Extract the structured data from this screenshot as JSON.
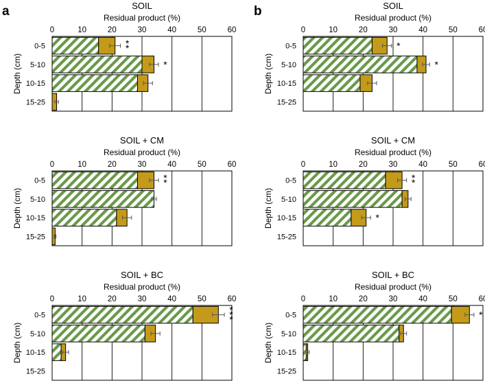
{
  "panel_labels": [
    "a",
    "b"
  ],
  "colors": {
    "hatch": "#6a994a",
    "solid": "#c49a1a",
    "frame": "#000000",
    "grid": "#000000"
  },
  "chart_data": [
    {
      "type": "bar",
      "orientation": "horizontal",
      "stacked": true,
      "panel": "a",
      "title": "SOIL",
      "xlabel": "Residual product (%)",
      "ylabel": "Depth (cm)",
      "xlim": [
        0,
        60
      ],
      "xticks": [
        0,
        10,
        20,
        30,
        40,
        50,
        60
      ],
      "categories": [
        "0-5",
        "5-10",
        "10-15",
        "15-25"
      ],
      "series": [
        {
          "style": "hatched",
          "values": [
            15.5,
            30,
            28.5,
            0
          ]
        },
        {
          "style": "solid",
          "values": [
            5.5,
            4,
            3.5,
            1.5
          ],
          "errors": [
            1.8,
            1.5,
            1.5,
            0.6
          ]
        }
      ],
      "annotations": [
        "**",
        "*",
        "",
        ""
      ],
      "grid": true
    },
    {
      "type": "bar",
      "orientation": "horizontal",
      "stacked": true,
      "panel": "b",
      "title": "SOIL",
      "xlabel": "Residual product (%)",
      "ylabel": "Depth (cm)",
      "xlim": [
        0,
        60
      ],
      "xticks": [
        0,
        10,
        20,
        30,
        40,
        50,
        60
      ],
      "categories": [
        "0-5",
        "5-10",
        "10-15",
        "15-25"
      ],
      "series": [
        {
          "style": "hatched",
          "values": [
            23,
            38,
            19,
            0
          ]
        },
        {
          "style": "solid",
          "values": [
            5,
            3,
            4,
            0
          ],
          "errors": [
            1.5,
            1.2,
            1.5,
            0
          ]
        }
      ],
      "annotations": [
        "*",
        "*",
        "",
        ""
      ],
      "grid": true
    },
    {
      "type": "bar",
      "orientation": "horizontal",
      "stacked": true,
      "panel": "a",
      "title": "SOIL + CM",
      "xlabel": "Residual product (%)",
      "ylabel": "Depth (cm)",
      "xlim": [
        0,
        60
      ],
      "xticks": [
        0,
        10,
        20,
        30,
        40,
        50,
        60
      ],
      "categories": [
        "0-5",
        "5-10",
        "10-15",
        "15-25"
      ],
      "series": [
        {
          "style": "hatched",
          "values": [
            28.5,
            34,
            21.5,
            0
          ]
        },
        {
          "style": "solid",
          "values": [
            5.5,
            0,
            3.5,
            1
          ],
          "errors": [
            1.5,
            0.8,
            1.5,
            0.3
          ]
        }
      ],
      "annotations": [
        "**",
        "",
        "",
        ""
      ],
      "grid": true
    },
    {
      "type": "bar",
      "orientation": "horizontal",
      "stacked": true,
      "panel": "b",
      "title": "SOIL + CM",
      "xlabel": "Residual product (%)",
      "ylabel": "Depth (cm)",
      "xlim": [
        0,
        60
      ],
      "xticks": [
        0,
        10,
        20,
        30,
        40,
        50,
        60
      ],
      "categories": [
        "0-5",
        "5-10",
        "10-15",
        "15-25"
      ],
      "series": [
        {
          "style": "hatched",
          "values": [
            27.5,
            33,
            16,
            0
          ]
        },
        {
          "style": "solid",
          "values": [
            5.5,
            2,
            5,
            0
          ],
          "errors": [
            1.5,
            1,
            1.5,
            0
          ]
        }
      ],
      "annotations": [
        "**",
        "",
        "*",
        ""
      ],
      "grid": true
    },
    {
      "type": "bar",
      "orientation": "horizontal",
      "stacked": true,
      "panel": "a",
      "title": "SOIL + BC",
      "xlabel": "Residual product (%)",
      "ylabel": "Depth (cm)",
      "xlim": [
        0,
        60
      ],
      "xticks": [
        0,
        10,
        20,
        30,
        40,
        50,
        60
      ],
      "categories": [
        "0-5",
        "5-10",
        "10-15",
        "15-25"
      ],
      "series": [
        {
          "style": "hatched",
          "values": [
            47,
            31,
            3,
            0
          ]
        },
        {
          "style": "solid",
          "values": [
            8.5,
            3.5,
            1.5,
            0
          ],
          "errors": [
            2,
            1.5,
            1,
            0
          ]
        }
      ],
      "annotations": [
        "***",
        "",
        "",
        ""
      ],
      "grid": true
    },
    {
      "type": "bar",
      "orientation": "horizontal",
      "stacked": true,
      "panel": "b",
      "title": "SOIL + BC",
      "xlabel": "Residual product (%)",
      "ylabel": "Depth (cm)",
      "xlim": [
        0,
        60
      ],
      "xticks": [
        0,
        10,
        20,
        30,
        40,
        50,
        60
      ],
      "categories": [
        "0-5",
        "5-10",
        "10-15",
        "15-25"
      ],
      "series": [
        {
          "style": "hatched",
          "values": [
            49.5,
            32,
            1,
            0
          ]
        },
        {
          "style": "solid",
          "values": [
            6,
            1.5,
            0.5,
            0
          ],
          "errors": [
            1.5,
            1,
            0.5,
            0
          ]
        }
      ],
      "annotations": [
        "*",
        "",
        "",
        ""
      ],
      "grid": true
    }
  ]
}
